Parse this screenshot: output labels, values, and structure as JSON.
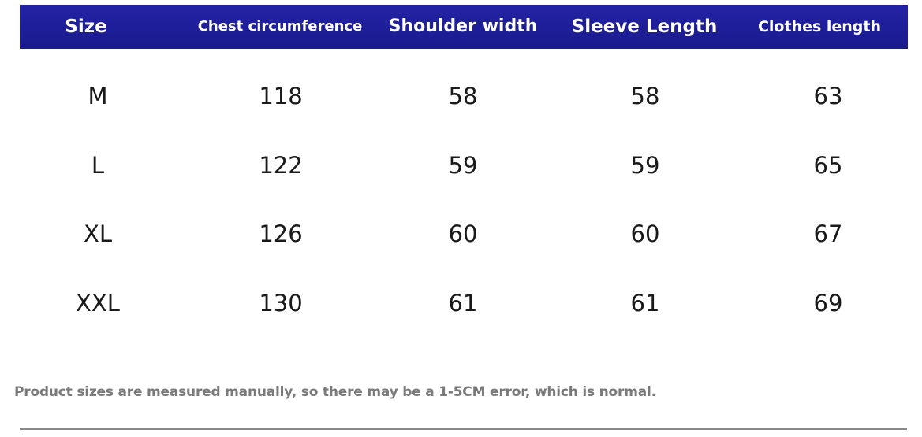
{
  "table": {
    "headers": [
      "Size",
      "Chest circumference",
      "Shoulder width",
      "Sleeve Length",
      "Clothes length"
    ],
    "rows": [
      [
        "M",
        "118",
        "58",
        "58",
        "63"
      ],
      [
        "L",
        "122",
        "59",
        "59",
        "65"
      ],
      [
        "XL",
        "126",
        "60",
        "60",
        "67"
      ],
      [
        "XXL",
        "130",
        "61",
        "61",
        "69"
      ]
    ]
  },
  "note": "Product sizes are measured manually, so there may be a 1-5CM error, which is normal.",
  "colors": {
    "header_background": "#1f1f9a",
    "header_text": "#ffffff",
    "body_text": "#1a1a1a",
    "note_text": "#7a7a7a",
    "divider": "#8a8a8a"
  }
}
